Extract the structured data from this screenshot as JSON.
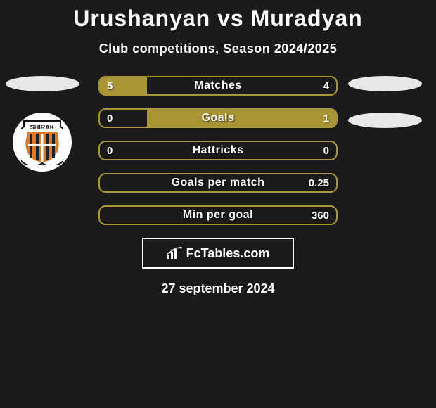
{
  "title": "Urushanyan vs Muradyan",
  "subtitle": "Club competitions, Season 2024/2025",
  "date": "27 september 2024",
  "footer_brand": "FcTables.com",
  "left_team_badge": {
    "name": "SHIRAK",
    "accent": "#d97a2a",
    "panel": "#222"
  },
  "colors": {
    "bar_fill": "#a89536",
    "bar_border": "#a89536",
    "bg": "#1a1a1a",
    "text": "#ffffff"
  },
  "bars": [
    {
      "label": "Matches",
      "left": "5",
      "right": "4",
      "left_pct": 20,
      "right_pct": 0
    },
    {
      "label": "Goals",
      "left": "0",
      "right": "1",
      "left_pct": 0,
      "right_pct": 80
    },
    {
      "label": "Hattricks",
      "left": "0",
      "right": "0",
      "left_pct": 0,
      "right_pct": 0
    },
    {
      "label": "Goals per match",
      "left": "",
      "right": "0.25",
      "left_pct": 0,
      "right_pct": 0
    },
    {
      "label": "Min per goal",
      "left": "",
      "right": "360",
      "left_pct": 0,
      "right_pct": 0
    }
  ]
}
